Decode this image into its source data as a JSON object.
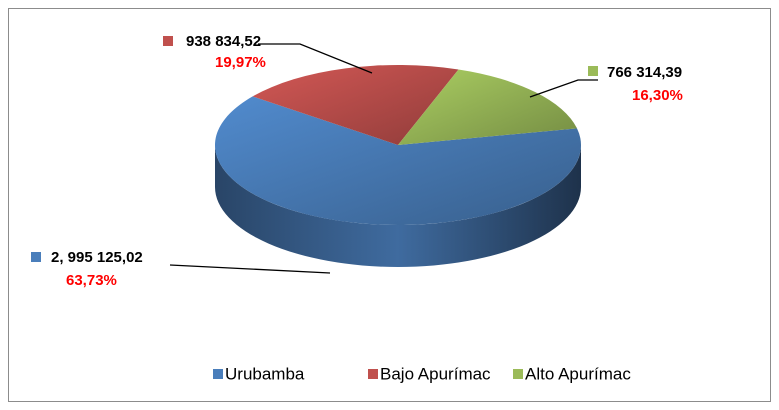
{
  "chart_data": {
    "type": "pie",
    "categories": [
      "Urubamba",
      "Bajo Apurímac",
      "Alto Apurímac"
    ],
    "values": [
      2995125.02,
      938834.52,
      766314.39
    ],
    "value_labels": [
      "2, 995 125,02",
      "938 834,52",
      "766 314,39"
    ],
    "percent": [
      63.73,
      19.97,
      16.3
    ],
    "percent_labels": [
      "63,73%",
      "19,97%",
      "16,30%"
    ],
    "colors": [
      "#4a7ebb",
      "#c0504d",
      "#9bbb59"
    ],
    "legend": "bottom"
  }
}
